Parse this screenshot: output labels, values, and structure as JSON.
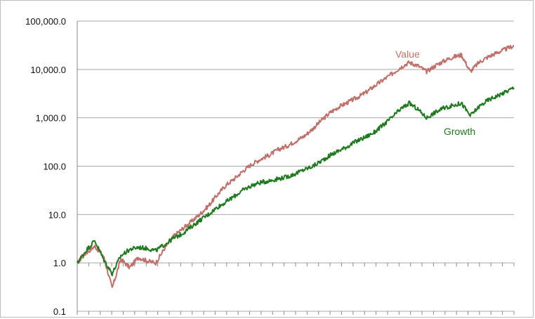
{
  "chart_data": {
    "type": "line",
    "title": "",
    "xlabel": "",
    "ylabel": "",
    "y_scale": "log",
    "ylim": [
      0.1,
      100000
    ],
    "y_tick_labels": [
      "100,000.0",
      "10,000.0",
      "1,000.0",
      "100.0",
      "10.0",
      "1.0",
      "0.1"
    ],
    "y_tick_values": [
      100000,
      10000,
      1000,
      100,
      10,
      1,
      0.1
    ],
    "x_tick_count": 38,
    "grid": "horizontal",
    "legend": "inline labels",
    "x": [
      0,
      0.02,
      0.04,
      0.06,
      0.08,
      0.1,
      0.12,
      0.14,
      0.16,
      0.18,
      0.2,
      0.22,
      0.24,
      0.26,
      0.28,
      0.3,
      0.32,
      0.34,
      0.36,
      0.38,
      0.4,
      0.42,
      0.44,
      0.46,
      0.48,
      0.5,
      0.52,
      0.54,
      0.56,
      0.58,
      0.6,
      0.62,
      0.64,
      0.66,
      0.68,
      0.7,
      0.72,
      0.74,
      0.76,
      0.78,
      0.8,
      0.82,
      0.84,
      0.86,
      0.88,
      0.9,
      0.92,
      0.94,
      0.96,
      0.98,
      1.0
    ],
    "series": [
      {
        "name": "Value",
        "color": "#c0706a",
        "values": [
          1.0,
          1.6,
          2.2,
          1.4,
          0.3,
          1.2,
          0.8,
          1.3,
          1.1,
          1.0,
          2.0,
          3.5,
          5.0,
          7.0,
          10.0,
          15.0,
          25.0,
          40.0,
          55.0,
          80.0,
          110.0,
          140.0,
          170.0,
          220.0,
          260.0,
          330.0,
          420.0,
          600.0,
          900.0,
          1300.0,
          1700.0,
          2100.0,
          2600.0,
          3300.0,
          4500.0,
          6000.0,
          8000.0,
          11000.0,
          14000.0,
          12000.0,
          9000.0,
          12000.0,
          15000.0,
          18000.0,
          20000.0,
          9000.0,
          14000.0,
          18000.0,
          22000.0,
          26000.0,
          31000.0
        ]
      },
      {
        "name": "Growth",
        "color": "#1f7a1f",
        "values": [
          1.0,
          1.8,
          2.9,
          1.2,
          0.6,
          1.4,
          1.9,
          2.1,
          2.0,
          1.8,
          2.4,
          3.2,
          4.0,
          5.5,
          7.5,
          10.0,
          14.0,
          18.0,
          24.0,
          32.0,
          40.0,
          46.0,
          50.0,
          55.0,
          60.0,
          70.0,
          85.0,
          100.0,
          130.0,
          170.0,
          210.0,
          260.0,
          330.0,
          400.0,
          500.0,
          700.0,
          1000.0,
          1500.0,
          2000.0,
          1500.0,
          1000.0,
          1300.0,
          1600.0,
          1800.0,
          2000.0,
          1100.0,
          1700.0,
          2300.0,
          2800.0,
          3400.0,
          4200.0
        ]
      }
    ]
  }
}
